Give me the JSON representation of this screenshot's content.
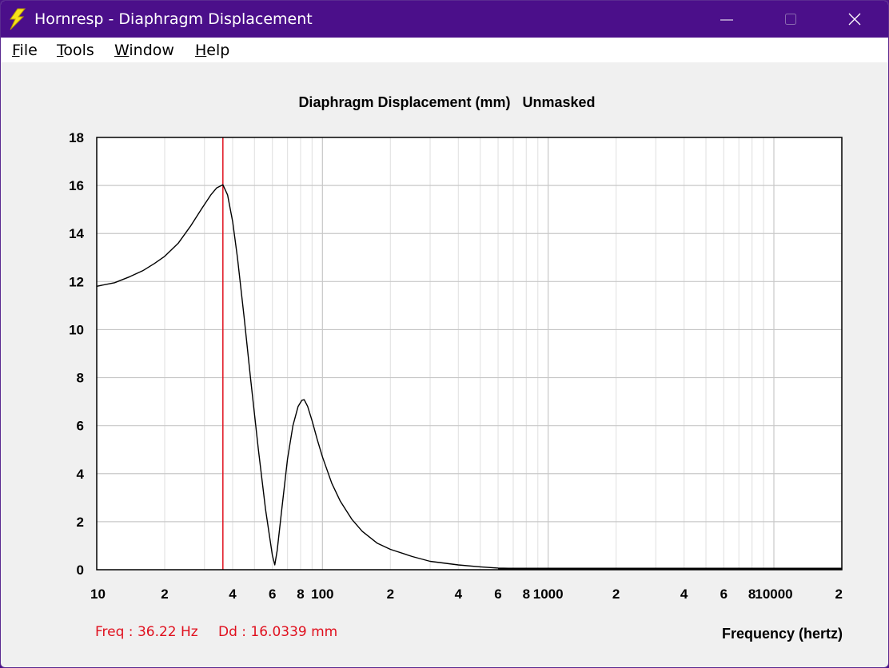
{
  "window": {
    "title": "Hornresp - Diaphragm Displacement",
    "controls": [
      "minimize",
      "maximize",
      "close"
    ]
  },
  "menu": {
    "items": [
      {
        "label": "File",
        "accel": "F",
        "rest": "ile"
      },
      {
        "label": "Tools",
        "accel": "T",
        "rest": "ools"
      },
      {
        "label": "Window",
        "accel": "W",
        "rest": "indow"
      },
      {
        "label": "Help",
        "accel": "H",
        "rest": "elp"
      }
    ]
  },
  "readout": {
    "freq": "Freq : 36.22 Hz",
    "dd": "Dd : 16.0339 mm"
  },
  "colors": {
    "titlebar": "#4b0f8a",
    "curve": "#000000",
    "marker": "#e0101e",
    "grid_major": "#c8c8c8",
    "grid_minor": "#e4e4e4"
  },
  "chart_data": {
    "type": "line",
    "title": "Diaphragm Displacement (mm)   Unmasked",
    "xlabel": "Frequency (hertz)",
    "ylabel": "",
    "x_scale": "log",
    "xlim": [
      10,
      20000
    ],
    "ylim": [
      0,
      18
    ],
    "yticks": [
      0,
      2,
      4,
      6,
      8,
      10,
      12,
      14,
      16,
      18
    ],
    "xtick_labels": [
      {
        "x": 10,
        "label": "10"
      },
      {
        "x": 20,
        "label": "2"
      },
      {
        "x": 40,
        "label": "4"
      },
      {
        "x": 60,
        "label": "6"
      },
      {
        "x": 80,
        "label": "8"
      },
      {
        "x": 100,
        "label": "100"
      },
      {
        "x": 200,
        "label": "2"
      },
      {
        "x": 400,
        "label": "4"
      },
      {
        "x": 600,
        "label": "6"
      },
      {
        "x": 800,
        "label": "8"
      },
      {
        "x": 1000,
        "label": "1000"
      },
      {
        "x": 2000,
        "label": "2"
      },
      {
        "x": 4000,
        "label": "4"
      },
      {
        "x": 6000,
        "label": "6"
      },
      {
        "x": 8000,
        "label": "8"
      },
      {
        "x": 10000,
        "label": "10000"
      },
      {
        "x": 20000,
        "label": "2"
      }
    ],
    "grid": true,
    "marker_frequency": 36.22,
    "series": [
      {
        "x": [
          10,
          12,
          14,
          16,
          18,
          20,
          23,
          26,
          29,
          32,
          34,
          36.22,
          38,
          40,
          42,
          45,
          48,
          52,
          56,
          60,
          61.5,
          63,
          66,
          70,
          74,
          78,
          81,
          83,
          86,
          90,
          95,
          100,
          110,
          120,
          135,
          150,
          175,
          200,
          250,
          300,
          400,
          500,
          600,
          800,
          1000,
          2000,
          5000,
          10000,
          20000
        ],
        "y": [
          11.8,
          11.95,
          12.2,
          12.45,
          12.75,
          13.05,
          13.6,
          14.3,
          15.0,
          15.6,
          15.9,
          16.03,
          15.6,
          14.5,
          13.0,
          10.5,
          8.0,
          5.0,
          2.5,
          0.6,
          0.2,
          0.8,
          2.5,
          4.6,
          6.0,
          6.8,
          7.05,
          7.08,
          6.8,
          6.2,
          5.4,
          4.7,
          3.6,
          2.85,
          2.1,
          1.6,
          1.1,
          0.85,
          0.55,
          0.35,
          0.2,
          0.12,
          0.07,
          0.04,
          0.03,
          0.02,
          0.01,
          0.01,
          0.01
        ]
      }
    ]
  }
}
